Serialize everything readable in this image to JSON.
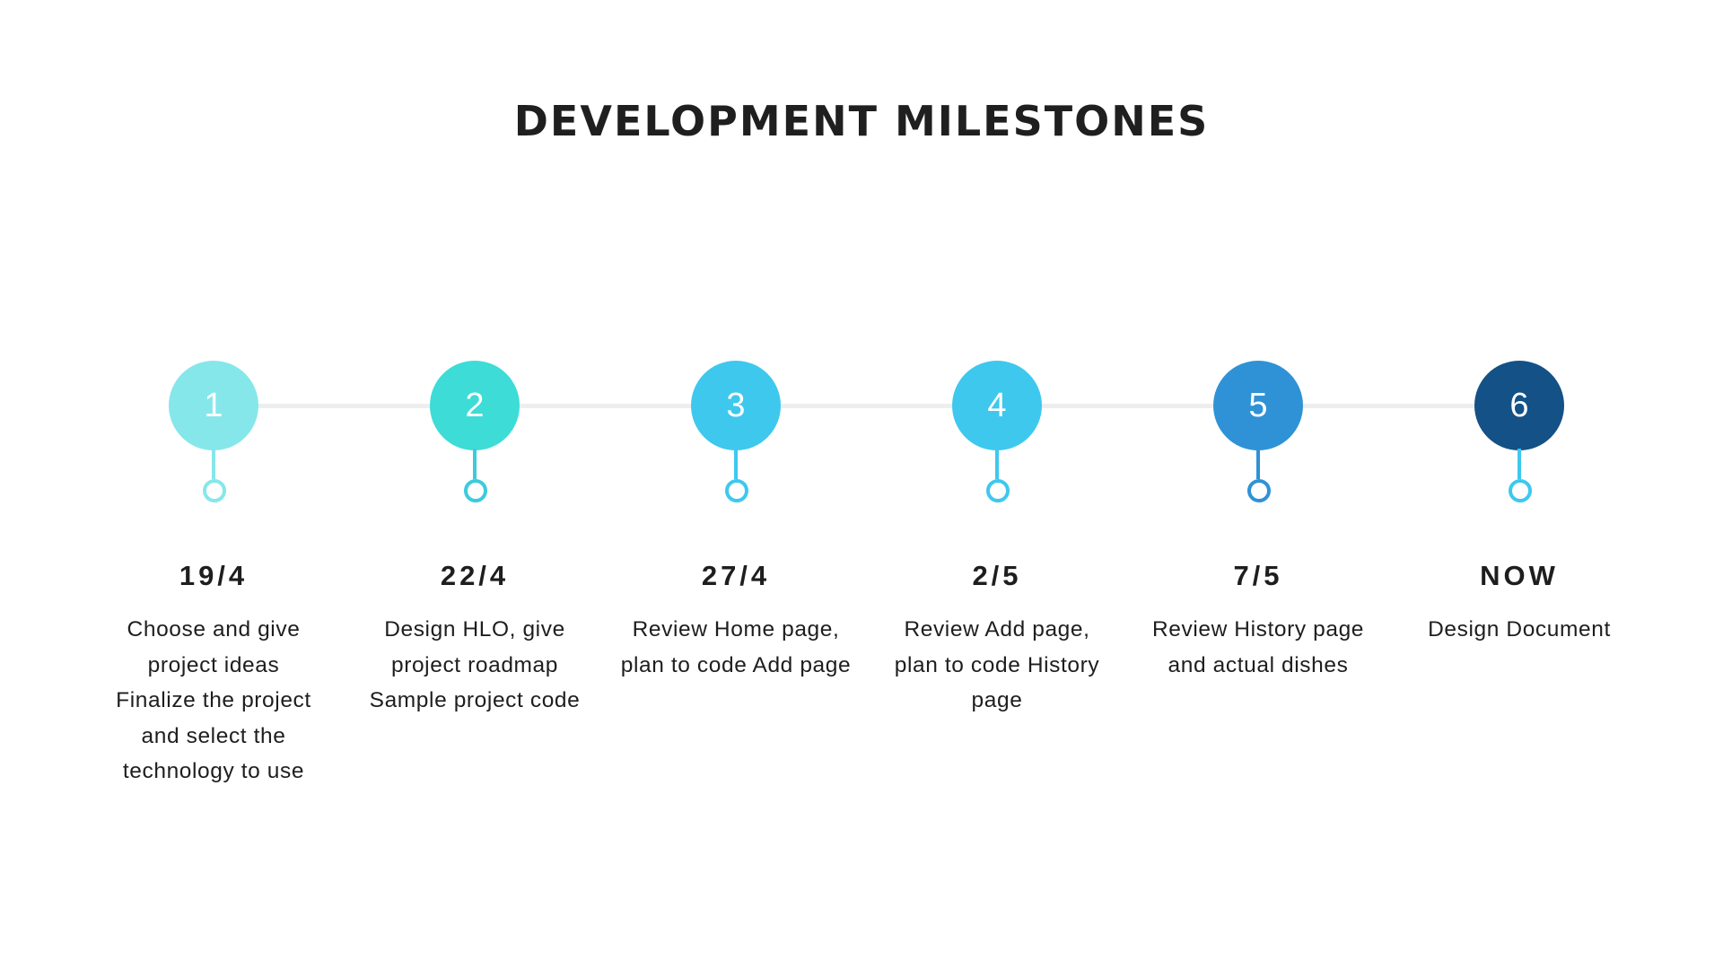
{
  "title": "DEVELOPMENT MILESTONES",
  "milestones": [
    {
      "number": "1",
      "date": "19/4",
      "lines": [
        "Choose and give",
        "project ideas",
        "Finalize the project",
        "and select the",
        "technology to use"
      ],
      "color": "#86e7ea",
      "ring_color": "#86e7ea"
    },
    {
      "number": "2",
      "date": "22/4",
      "lines": [
        "Design HLO, give",
        "project roadmap",
        "Sample project code"
      ],
      "color": "#3ddcd7",
      "ring_color": "#3ccbdc"
    },
    {
      "number": "3",
      "date": "27/4",
      "lines": [
        "Review Home page,",
        "plan to code Add page"
      ],
      "color": "#3ec8ee",
      "ring_color": "#3ec8ee"
    },
    {
      "number": "4",
      "date": "2/5",
      "lines": [
        "Review Add page,",
        "plan to code History",
        "page"
      ],
      "color": "#3ec8ee",
      "ring_color": "#3ec8ee"
    },
    {
      "number": "5",
      "date": "7/5",
      "lines": [
        "Review History page",
        "and actual dishes"
      ],
      "color": "#2f92d6",
      "ring_color": "#2f92d6"
    },
    {
      "number": "6",
      "date": "NOW",
      "lines": [
        "Design Document"
      ],
      "color": "#135187",
      "ring_color": "#3ec8ee"
    }
  ]
}
